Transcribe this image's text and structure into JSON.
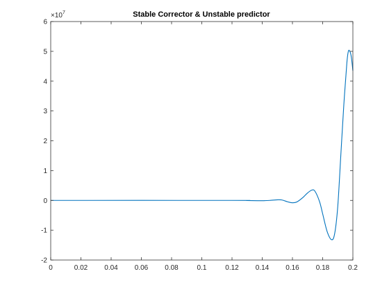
{
  "chart_data": {
    "type": "line",
    "title": "Stable Corrector & Unstable predictor",
    "xlabel": "",
    "ylabel": "",
    "xlim": [
      0,
      0.2
    ],
    "ylim": [
      -2,
      6
    ],
    "y_exponent_label": {
      "base": "×10",
      "power": "7"
    },
    "x_ticks": [
      "0",
      "0.02",
      "0.04",
      "0.06",
      "0.08",
      "0.1",
      "0.12",
      "0.14",
      "0.16",
      "0.18",
      "0.2"
    ],
    "x_tick_values": [
      0,
      0.02,
      0.04,
      0.06,
      0.08,
      0.1,
      0.12,
      0.14,
      0.16,
      0.18,
      0.2
    ],
    "y_ticks": [
      "-2",
      "-1",
      "0",
      "1",
      "2",
      "3",
      "4",
      "5",
      "6"
    ],
    "y_tick_values": [
      -2,
      -1,
      0,
      1,
      2,
      3,
      4,
      5,
      6
    ],
    "grid": false,
    "colors": {
      "line": "#0072BD",
      "axes": "#262626",
      "background": "#ffffff"
    },
    "series": [
      {
        "x": [
          0,
          0.12,
          0.13,
          0.14,
          0.145,
          0.15,
          0.153,
          0.157,
          0.16,
          0.163,
          0.167,
          0.17,
          0.173,
          0.175,
          0.178,
          0.18,
          0.183,
          0.186,
          0.188,
          0.19,
          0.192,
          0.194,
          0.196,
          0.197,
          0.198,
          0.199,
          0.2
        ],
        "y": [
          0,
          0,
          -0.005,
          -0.01,
          0.0,
          0.02,
          0.015,
          -0.05,
          -0.08,
          -0.05,
          0.1,
          0.25,
          0.35,
          0.3,
          -0.05,
          -0.45,
          -1.05,
          -1.32,
          -1.1,
          -0.2,
          1.5,
          3.2,
          4.6,
          5.0,
          5.0,
          4.8,
          4.35
        ]
      }
    ]
  }
}
